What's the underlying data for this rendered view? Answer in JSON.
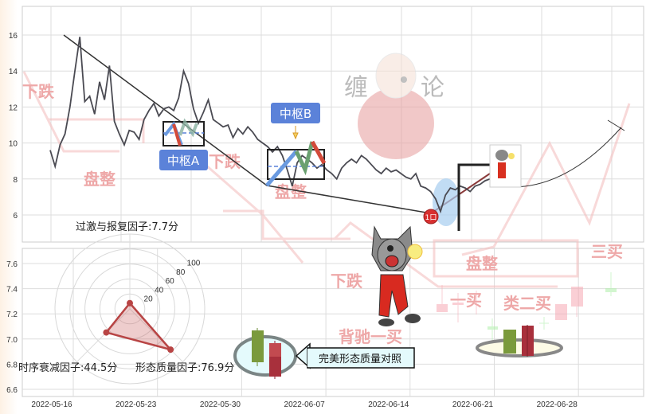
{
  "chart_data": [
    {
      "type": "line",
      "panel": "top",
      "y_ticks": [
        "16",
        "14",
        "12",
        "10",
        "8",
        "6"
      ],
      "ylim": [
        4.5,
        17.5
      ],
      "grid": true,
      "series": [
        {
          "values": [
            9.6,
            8.7,
            9.9,
            10.5,
            12,
            14,
            15.9,
            12.3,
            12.6,
            11.6,
            13.4,
            12.4,
            14.3,
            11.2,
            10.5,
            9.9,
            10.7,
            10.6,
            10.2,
            11.3,
            11.8,
            12.2,
            11.5,
            11.9,
            12.0,
            11.8,
            12.5,
            14.0,
            13.3,
            11.9,
            11.1,
            11.7,
            12.4,
            11.3,
            11.1,
            10.9,
            11.0,
            10.3,
            10.8,
            10.5,
            10.9,
            10.6,
            10.2,
            10.0,
            9.8,
            9.5,
            9.8,
            9.3,
            8.5,
            7.6,
            8.9,
            9.3,
            9.1,
            8.9,
            8.6,
            8.8,
            8.5,
            8.3,
            8.0,
            8.6,
            8.9,
            9.1,
            8.9,
            9.3,
            9.1,
            8.8,
            8.5,
            8.3,
            8.6,
            8.4,
            8.5,
            8.3,
            8.1,
            8.0,
            8.3,
            7.6,
            7.5,
            7.3,
            6.9,
            6.2,
            7.1,
            7.5,
            7.4,
            7.6,
            7.5,
            7.3,
            7.6,
            7.7,
            7.9,
            8.0
          ]
        }
      ],
      "annotations": {
        "zhongshu_a": "中枢A",
        "zhongshu_b": "中枢B",
        "buy_point_marker": "1口",
        "watermark_title": "缠论",
        "watermark_labels": [
          "下跌",
          "盘整",
          "盘整",
          "下跌",
          "盘整",
          "下跌",
          "背驰一买",
          "一买",
          "类二买",
          "三买"
        ]
      }
    },
    {
      "type": "bar",
      "panel": "bottom",
      "y_ticks": [
        "7.6",
        "7.4",
        "7.2",
        "7.0",
        "6.8",
        "6.6"
      ],
      "ylim": [
        6.55,
        7.7
      ],
      "x_ticks": [
        "2022-05-16",
        "2022-05-23",
        "2022-05-30",
        "2022-06-07",
        "2022-06-14",
        "2022-06-21",
        "2022-06-28"
      ],
      "grid": true,
      "callout": "完美形态质量对照"
    },
    {
      "type": "radar",
      "ring_labels": [
        "20",
        "40",
        "60",
        "80",
        "100"
      ],
      "rmax": 100,
      "axes": [
        {
          "label": "过激与报复因子:7.7分",
          "value": 7.7
        },
        {
          "label": "时序衰减因子:44.5分",
          "value": 44.5
        },
        {
          "label": "形态质量因子:76.9分",
          "value": 76.9
        }
      ],
      "color": "#b84444"
    }
  ],
  "colors": {
    "price": "#4a4a52",
    "zhongshu_label": "#5b82d9",
    "bull": "#7a9a3c",
    "bear": "#a8303c",
    "watermark": "#f2b8b8"
  }
}
